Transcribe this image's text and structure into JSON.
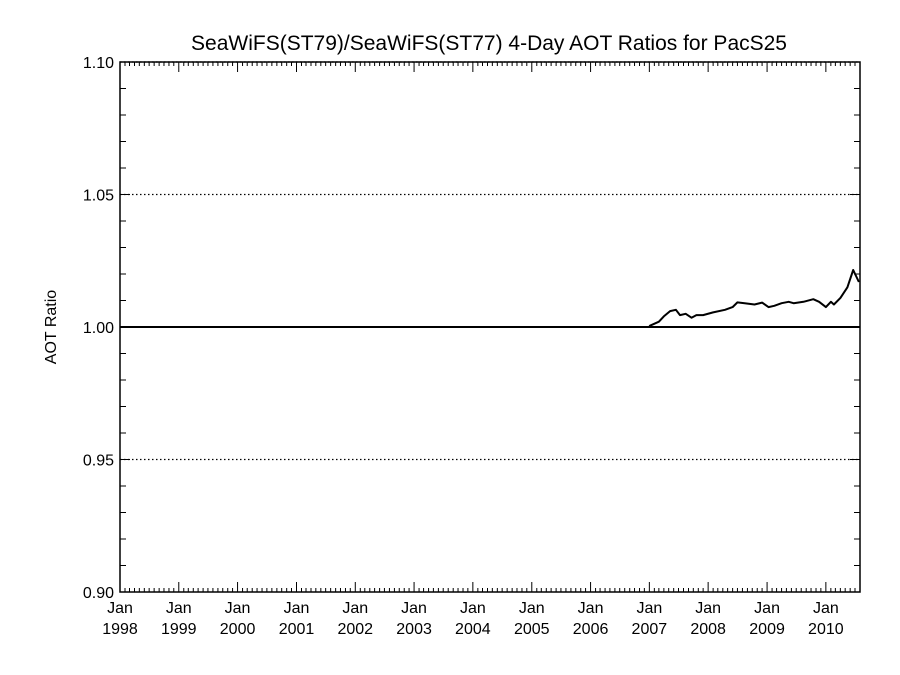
{
  "chart_data": {
    "type": "line",
    "title": "SeaWiFS(ST79)/SeaWiFS(ST77) 4-Day AOT Ratios for PacS25",
    "xlabel": "",
    "ylabel": "AOT Ratio",
    "xlim": [
      "1998-01-01",
      "2010-08-01"
    ],
    "ylim": [
      0.9,
      1.1
    ],
    "y_ticks": [
      "0.90",
      "0.95",
      "1.00",
      "1.05",
      "1.10"
    ],
    "x_ticks": [
      {
        "month": "Jan",
        "year": "1998",
        "date": "1998-01-01"
      },
      {
        "month": "Jan",
        "year": "1999",
        "date": "1999-01-01"
      },
      {
        "month": "Jan",
        "year": "2000",
        "date": "2000-01-01"
      },
      {
        "month": "Jan",
        "year": "2001",
        "date": "2001-01-01"
      },
      {
        "month": "Jan",
        "year": "2002",
        "date": "2002-01-01"
      },
      {
        "month": "Jan",
        "year": "2003",
        "date": "2003-01-01"
      },
      {
        "month": "Jan",
        "year": "2004",
        "date": "2004-01-01"
      },
      {
        "month": "Jan",
        "year": "2005",
        "date": "2005-01-01"
      },
      {
        "month": "Jan",
        "year": "2006",
        "date": "2006-01-01"
      },
      {
        "month": "Jan",
        "year": "2007",
        "date": "2007-01-01"
      },
      {
        "month": "Jan",
        "year": "2008",
        "date": "2008-01-01"
      },
      {
        "month": "Jan",
        "year": "2009",
        "date": "2009-01-01"
      },
      {
        "month": "Jan",
        "year": "2010",
        "date": "2010-01-01"
      }
    ],
    "grid": "dotted horizontal lines at 0.95 and 1.05",
    "reference_line": {
      "y": 1.0
    },
    "series": [
      {
        "color": "#000000",
        "points": [
          {
            "x": "1998-01-01",
            "y": 1.0
          },
          {
            "x": "2006-12-31",
            "y": 1.0
          },
          {
            "x": "2007-01-05",
            "y": 1.0005
          },
          {
            "x": "2007-03-01",
            "y": 1.002
          },
          {
            "x": "2007-04-01",
            "y": 1.004
          },
          {
            "x": "2007-05-10",
            "y": 1.006
          },
          {
            "x": "2007-06-15",
            "y": 1.0065
          },
          {
            "x": "2007-07-10",
            "y": 1.0045
          },
          {
            "x": "2007-08-15",
            "y": 1.005
          },
          {
            "x": "2007-09-20",
            "y": 1.0035
          },
          {
            "x": "2007-10-20",
            "y": 1.0045
          },
          {
            "x": "2007-12-01",
            "y": 1.0045
          },
          {
            "x": "2008-02-01",
            "y": 1.0055
          },
          {
            "x": "2008-04-15",
            "y": 1.0065
          },
          {
            "x": "2008-06-01",
            "y": 1.0075
          },
          {
            "x": "2008-07-01",
            "y": 1.0093
          },
          {
            "x": "2008-08-15",
            "y": 1.009
          },
          {
            "x": "2008-10-15",
            "y": 1.0085
          },
          {
            "x": "2008-12-01",
            "y": 1.0092
          },
          {
            "x": "2009-01-10",
            "y": 1.0075
          },
          {
            "x": "2009-02-15",
            "y": 1.008
          },
          {
            "x": "2009-04-01",
            "y": 1.009
          },
          {
            "x": "2009-05-15",
            "y": 1.0095
          },
          {
            "x": "2009-06-15",
            "y": 1.009
          },
          {
            "x": "2009-08-15",
            "y": 1.0095
          },
          {
            "x": "2009-10-15",
            "y": 1.0105
          },
          {
            "x": "2009-11-20",
            "y": 1.0095
          },
          {
            "x": "2010-01-01",
            "y": 1.0075
          },
          {
            "x": "2010-02-01",
            "y": 1.0095
          },
          {
            "x": "2010-02-20",
            "y": 1.0085
          },
          {
            "x": "2010-04-01",
            "y": 1.011
          },
          {
            "x": "2010-05-15",
            "y": 1.015
          },
          {
            "x": "2010-06-20",
            "y": 1.0215
          },
          {
            "x": "2010-07-25",
            "y": 1.017
          }
        ]
      }
    ]
  }
}
